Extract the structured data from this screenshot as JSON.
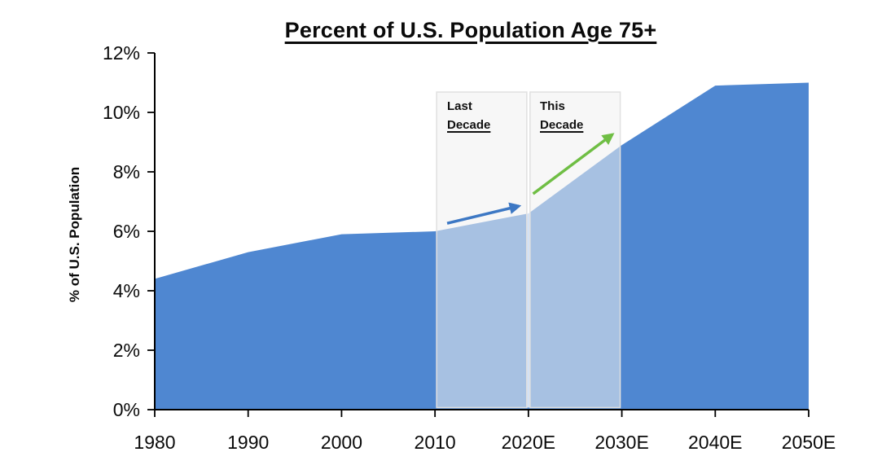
{
  "chart_data": {
    "type": "area",
    "title": "Percent of U.S. Population Age 75+",
    "ylabel": "% of U.S. Population",
    "xlabel": "",
    "categories": [
      "1980",
      "1990",
      "2000",
      "2010",
      "2020E",
      "2030E",
      "2040E",
      "2050E"
    ],
    "values": [
      4.4,
      5.3,
      5.9,
      6.0,
      6.6,
      8.9,
      10.9,
      11.0
    ],
    "ylim": [
      0,
      12
    ],
    "yticks": [
      {
        "value": 0,
        "label": "0%"
      },
      {
        "value": 2,
        "label": "2%"
      },
      {
        "value": 4,
        "label": "4%"
      },
      {
        "value": 6,
        "label": "6%"
      },
      {
        "value": 8,
        "label": "8%"
      },
      {
        "value": 10,
        "label": "10%"
      },
      {
        "value": 12,
        "label": "12%"
      }
    ],
    "grid": false,
    "legend": "none",
    "colors": {
      "area_fill": "#4f87d1",
      "highlight_overlay": "rgba(241,241,241,0.55)",
      "highlight_border": "#e0e0e0",
      "axis": "#000000",
      "last_decade_arrow": "#3d78c4",
      "this_decade_arrow": "#6fbe44"
    },
    "annotations": [
      {
        "line1": "Last",
        "line2": "Decade",
        "span": {
          "from": "2010",
          "to": "2020E",
          "from_index": 3,
          "to_index": 4
        },
        "arrow": {
          "color": "#3d78c4",
          "x1": 3.13,
          "y1": 6.27,
          "x2": 3.9,
          "y2": 6.85
        }
      },
      {
        "line1": "This",
        "line2": "Decade",
        "span": {
          "from": "2020E",
          "to": "2030E",
          "from_index": 4,
          "to_index": 5
        },
        "arrow": {
          "color": "#6fbe44",
          "x1": 4.05,
          "y1": 7.26,
          "x2": 4.9,
          "y2": 9.26
        }
      }
    ]
  }
}
